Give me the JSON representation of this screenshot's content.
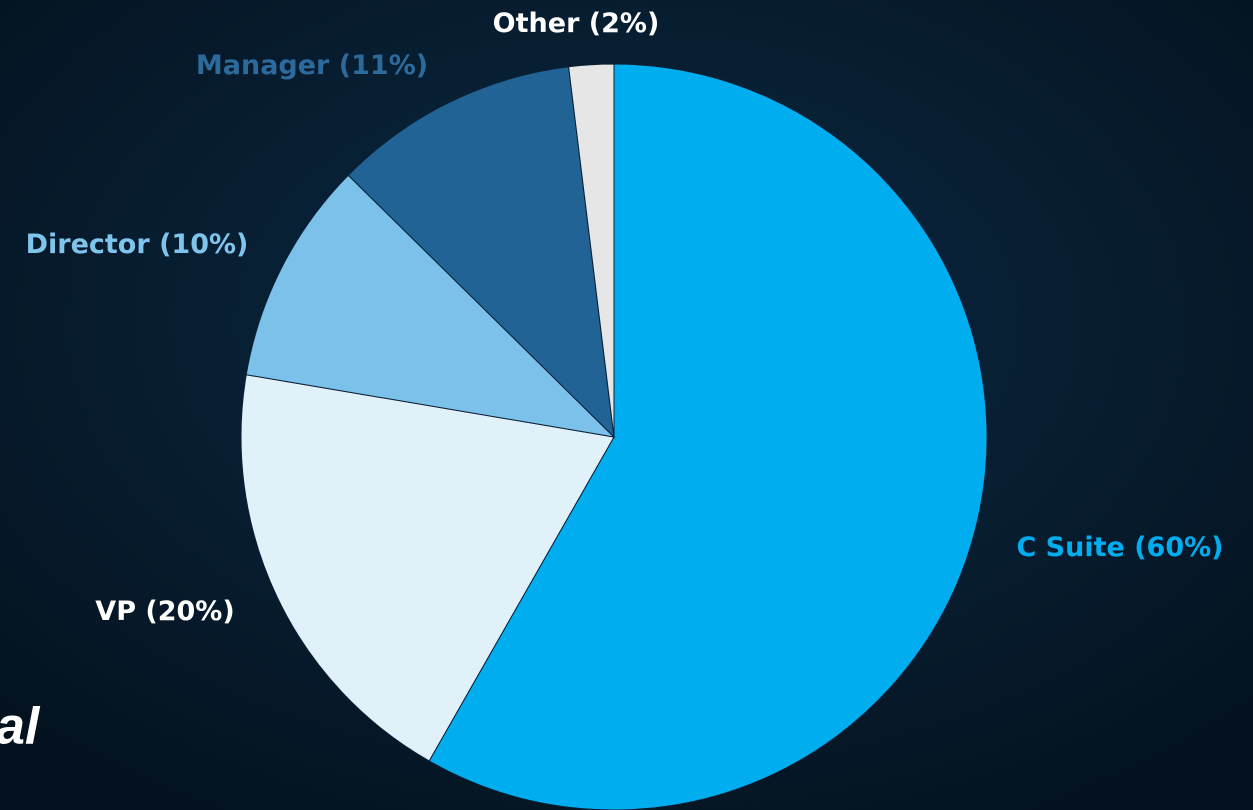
{
  "chart_data": {
    "type": "pie",
    "categories": [
      "C Suite",
      "VP",
      "Director",
      "Manager",
      "Other"
    ],
    "values": [
      60,
      20,
      10,
      11,
      2
    ],
    "value_labels": [
      "(60%)",
      "(20%)",
      "(10%)",
      "(11%)",
      "(2%)"
    ],
    "colors": [
      "#00aeef",
      "#e1f1fa",
      "#7bc1ea",
      "#206394",
      "#e6e6e6"
    ]
  },
  "logo_text": "al"
}
